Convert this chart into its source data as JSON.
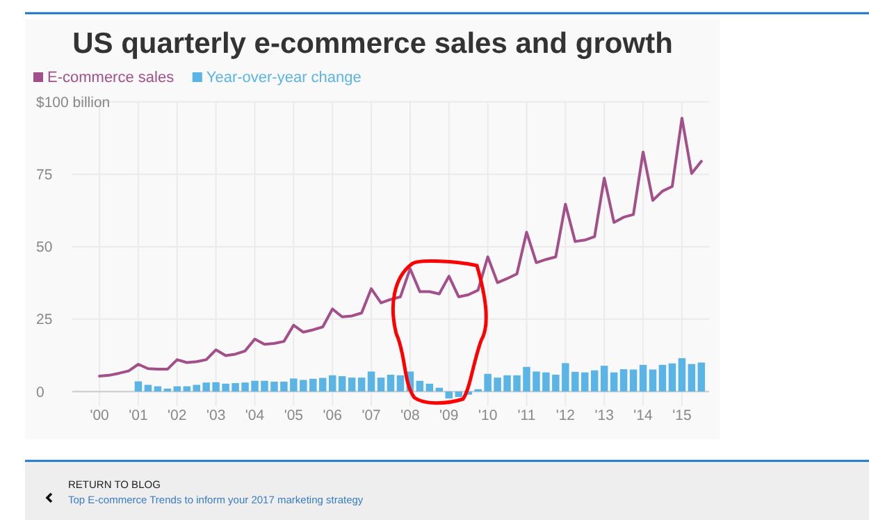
{
  "chart_data": {
    "type": "line",
    "title": "US quarterly e-commerce sales and growth",
    "legend": "top left",
    "grid": true,
    "xlim": [
      1999.3,
      2015.7
    ],
    "xticks": [
      {
        "value": 2000,
        "label": "'00"
      },
      {
        "value": 2001,
        "label": "'01"
      },
      {
        "value": 2002,
        "label": "'02"
      },
      {
        "value": 2003,
        "label": "'03"
      },
      {
        "value": 2004,
        "label": "'04"
      },
      {
        "value": 2005,
        "label": "'05"
      },
      {
        "value": 2006,
        "label": "'06"
      },
      {
        "value": 2007,
        "label": "'07"
      },
      {
        "value": 2008,
        "label": "'08"
      },
      {
        "value": 2009,
        "label": "'09"
      },
      {
        "value": 2010,
        "label": "'10"
      },
      {
        "value": 2011,
        "label": "'11"
      },
      {
        "value": 2012,
        "label": "'12"
      },
      {
        "value": 2013,
        "label": "'13"
      },
      {
        "value": 2014,
        "label": "'14"
      },
      {
        "value": 2015,
        "label": "'15"
      }
    ],
    "ylim": [
      -5,
      100
    ],
    "yticks": [
      0,
      25,
      50,
      75,
      {
        "value": 100,
        "label": "$100 billion"
      }
    ],
    "series": [
      {
        "name": "E-commerce sales",
        "color": "#a3508a",
        "x": [
          2000,
          2000.25,
          2000.5,
          2000.75,
          2001,
          2001.25,
          2001.5,
          2001.75,
          2002,
          2002.25,
          2002.5,
          2002.75,
          2003,
          2003.25,
          2003.5,
          2003.75,
          2004,
          2004.25,
          2004.5,
          2004.75,
          2005,
          2005.25,
          2005.5,
          2005.75,
          2006,
          2006.25,
          2006.5,
          2006.75,
          2007,
          2007.25,
          2007.5,
          2007.75,
          2008,
          2008.25,
          2008.5,
          2008.75,
          2009,
          2009.25,
          2009.5,
          2009.75,
          2010,
          2010.25,
          2010.5,
          2010.75,
          2011,
          2011.25,
          2011.5,
          2011.75,
          2012,
          2012.25,
          2012.5,
          2012.75,
          2013,
          2013.25,
          2013.5,
          2013.75,
          2014,
          2014.25,
          2014.5,
          2014.75,
          2015,
          2015.25,
          2015.5
        ],
        "values": [
          5.3,
          5.6,
          6.3,
          7.1,
          9.4,
          7.9,
          7.7,
          7.7,
          11,
          10,
          10.3,
          11,
          14.4,
          12.4,
          12.9,
          14,
          18.1,
          16.3,
          16.6,
          17.3,
          22.9,
          20.5,
          21.3,
          22.3,
          28.5,
          25.8,
          26.1,
          27.1,
          35.5,
          30.6,
          31.8,
          32.7,
          42.4,
          34.5,
          34.5,
          33.7,
          39.8,
          32.7,
          33.4,
          35,
          46.5,
          37.6,
          39,
          40.6,
          55,
          44.5,
          45.6,
          46.5,
          64.7,
          51.8,
          52.3,
          53.5,
          73.7,
          58.4,
          60.2,
          61.1,
          82.7,
          66,
          69.2,
          70.8,
          94.4,
          75.3,
          79.5
        ]
      },
      {
        "name": "Year-over-year change",
        "type": "bar",
        "color": "#5ab4e5",
        "x": [
          2001,
          2001.25,
          2001.5,
          2001.75,
          2002,
          2002.25,
          2002.5,
          2002.75,
          2003,
          2003.25,
          2003.5,
          2003.75,
          2004,
          2004.25,
          2004.5,
          2004.75,
          2005,
          2005.25,
          2005.5,
          2005.75,
          2006,
          2006.25,
          2006.5,
          2006.75,
          2007,
          2007.25,
          2007.5,
          2007.75,
          2008,
          2008.25,
          2008.5,
          2008.75,
          2009,
          2009.25,
          2009.5,
          2009.75,
          2010,
          2010.25,
          2010.5,
          2010.75,
          2011,
          2011.25,
          2011.5,
          2011.75,
          2012,
          2012.25,
          2012.5,
          2012.75,
          2013,
          2013.25,
          2013.5,
          2013.75,
          2014,
          2014.25,
          2014.5,
          2014.75,
          2015,
          2015.25,
          2015.5
        ],
        "values": [
          3.5,
          2.3,
          1.8,
          1,
          1.8,
          1.8,
          2.3,
          3.1,
          3.2,
          2.7,
          2.9,
          3.1,
          3.7,
          3.7,
          3.4,
          3.4,
          4.5,
          4,
          4.4,
          4.7,
          5.6,
          5.3,
          4.8,
          4.8,
          6.9,
          4.8,
          5.8,
          5.6,
          6.9,
          3.7,
          2.7,
          1.3,
          -2.4,
          -1.9,
          -1.1,
          0.8,
          6.1,
          4.8,
          5.6,
          5.6,
          8.5,
          6.9,
          6.6,
          5.8,
          9.8,
          6.8,
          6.6,
          7.3,
          8.9,
          6.6,
          7.7,
          7.6,
          9.2,
          7.6,
          9.2,
          9.7,
          11.5,
          9.5,
          10
        ]
      }
    ],
    "annotations": [
      "RETURN TO BLOG",
      "Top E-commerce Trends to inform your 2017 marketing strategy"
    ]
  }
}
